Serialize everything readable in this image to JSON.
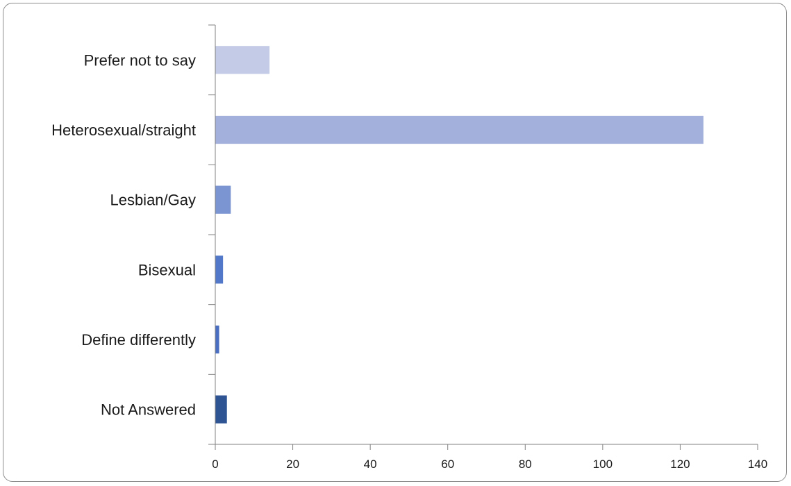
{
  "chart_data": {
    "type": "bar",
    "orientation": "horizontal",
    "title": "",
    "xlabel": "",
    "ylabel": "",
    "categories": [
      "Prefer not to say",
      "Heterosexual/straight",
      "Lesbian/Gay",
      "Bisexual",
      "Define differently",
      "Not Answered"
    ],
    "values": [
      14,
      126,
      4,
      2,
      1,
      3
    ],
    "xlim": [
      0,
      140
    ],
    "xticks": [
      0,
      20,
      40,
      60,
      80,
      100,
      120,
      140
    ],
    "grid": false,
    "legend": "none",
    "bar_colors": [
      "#c3cbe6",
      "#a2b0db",
      "#7b94d2",
      "#5279c9",
      "#4a6fc2",
      "#2e5494"
    ],
    "axis_color": "#808080"
  }
}
